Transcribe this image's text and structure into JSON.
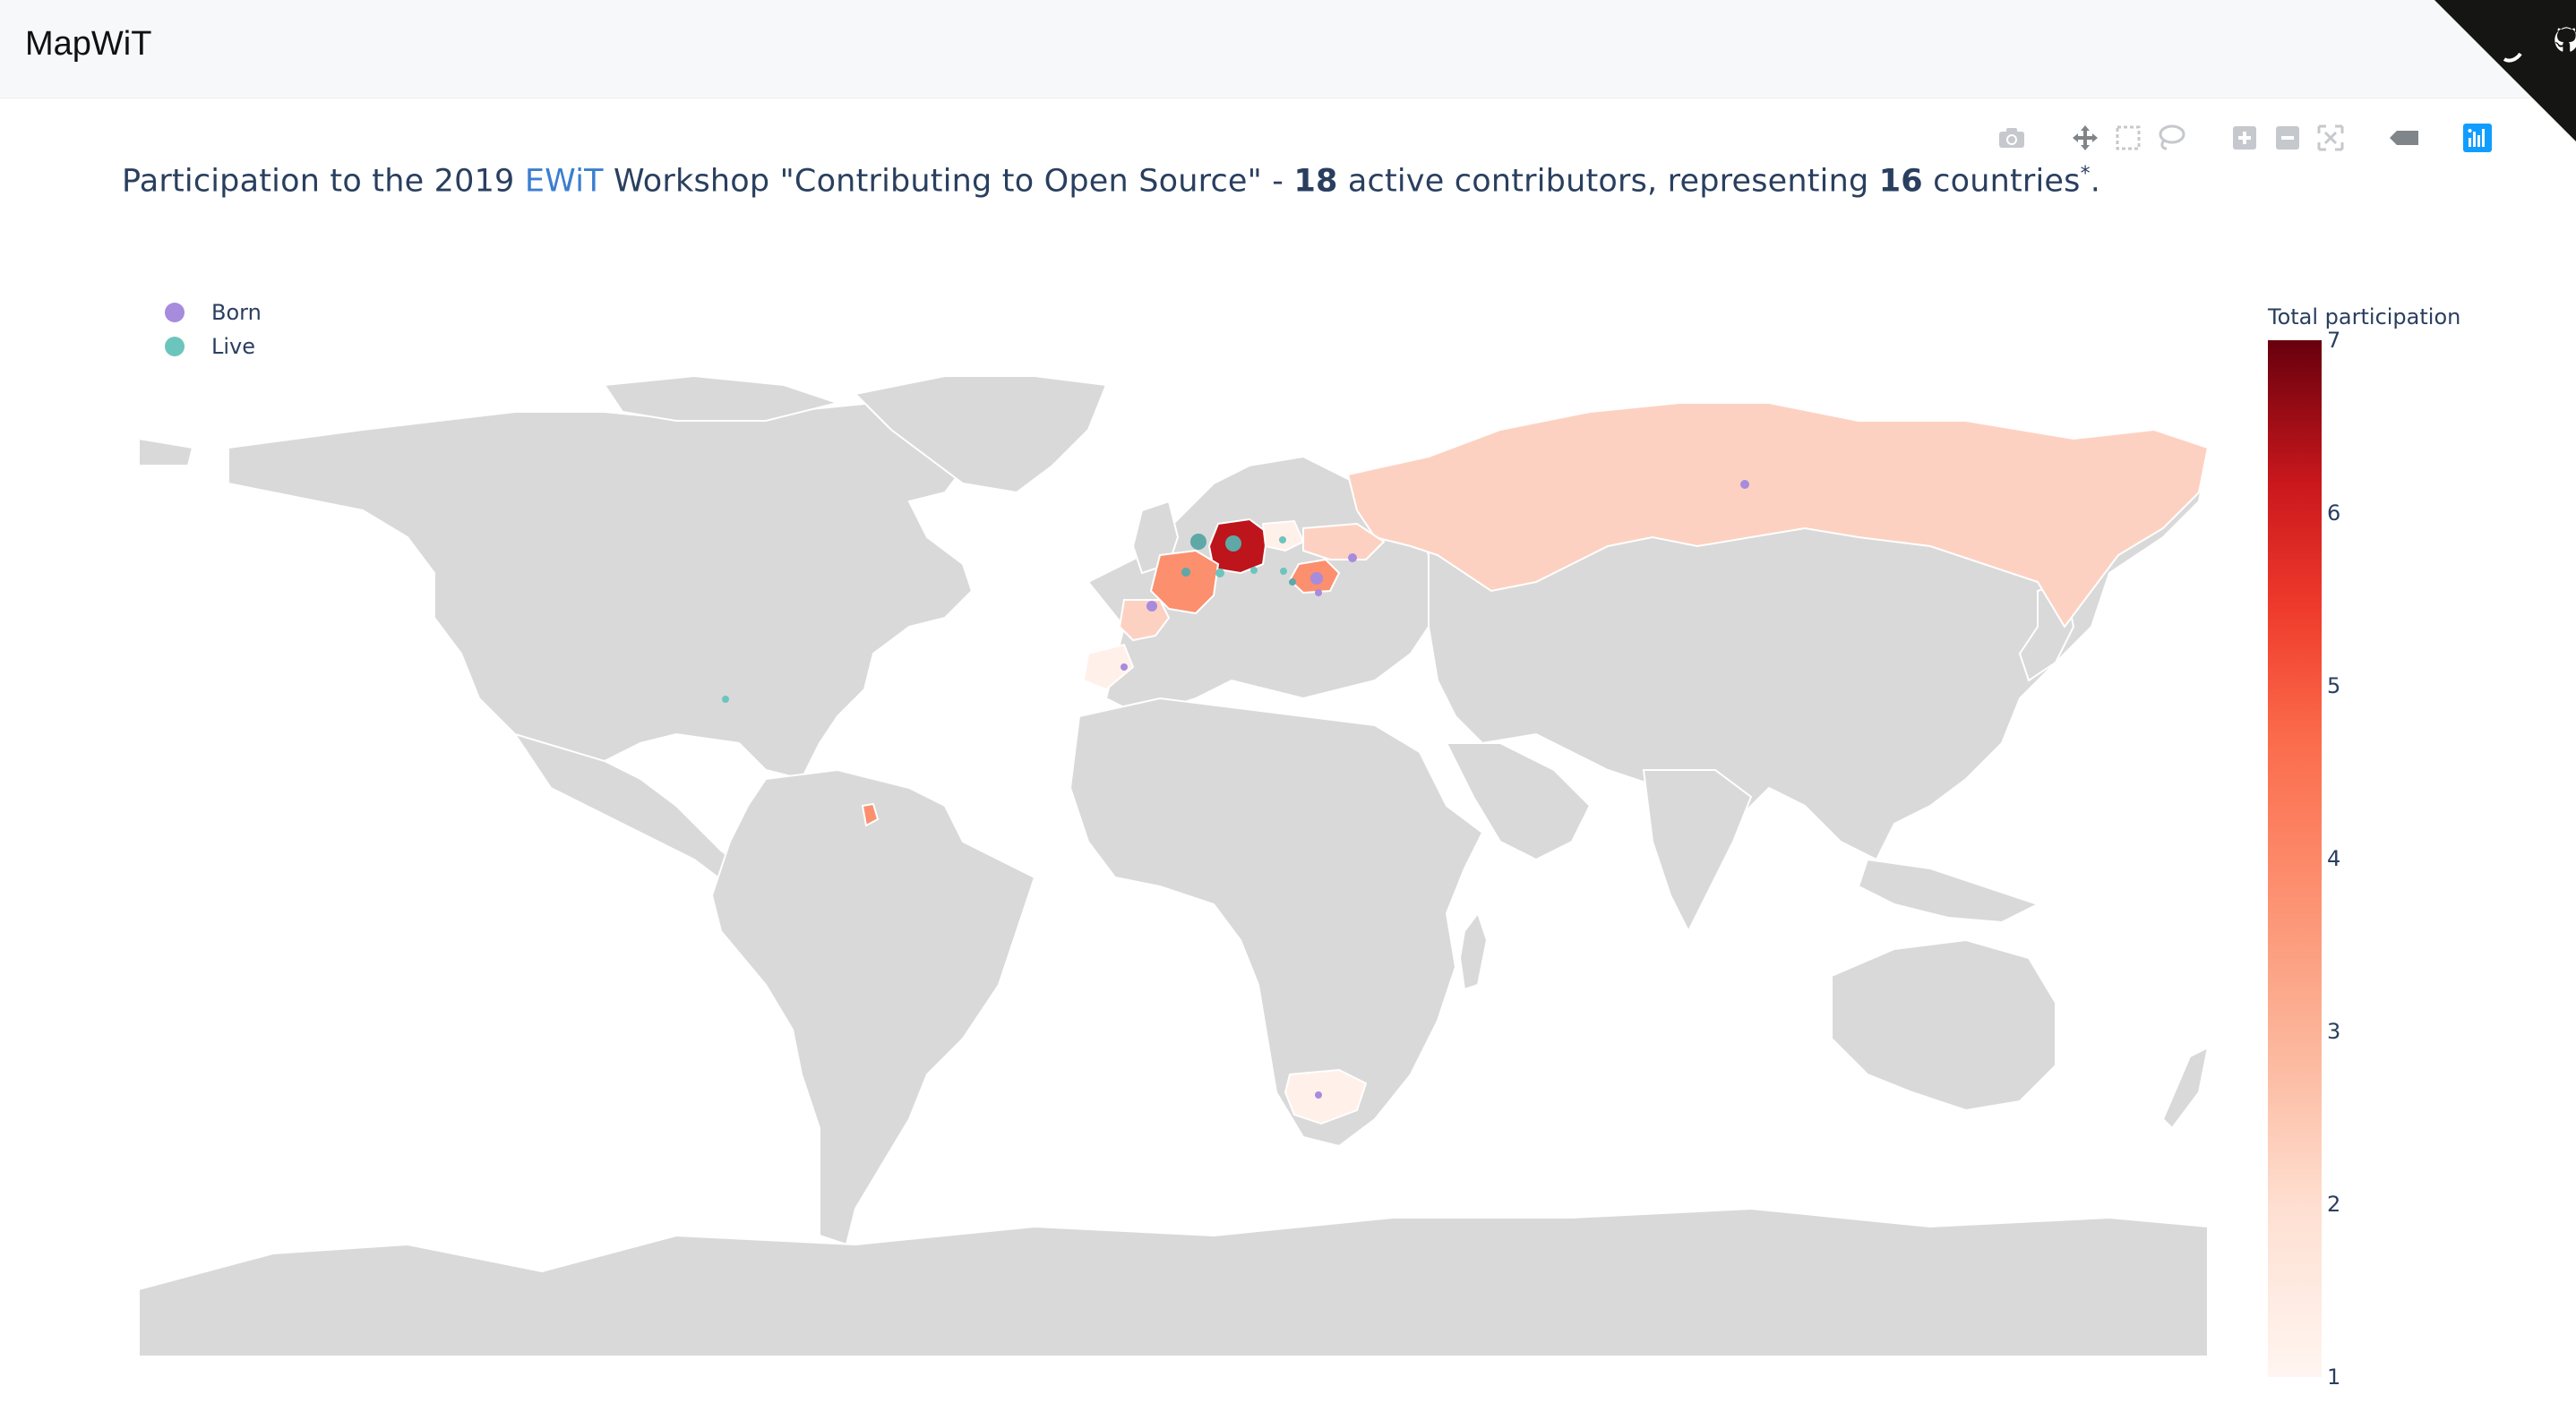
{
  "app": {
    "brand": "MapWiT"
  },
  "corner_icon": "github-octocat-icon",
  "modebar": [
    {
      "name": "camera-icon",
      "title": "Download plot as a png"
    },
    {
      "name": "pan-icon",
      "title": "Pan"
    },
    {
      "name": "box-select-icon",
      "title": "Box Select"
    },
    {
      "name": "lasso-select-icon",
      "title": "Lasso Select"
    },
    {
      "name": "zoom-in-icon",
      "title": "Zoom in"
    },
    {
      "name": "zoom-out-icon",
      "title": "Zoom out"
    },
    {
      "name": "reset-view-icon",
      "title": "Reset"
    },
    {
      "name": "hover-closest-icon",
      "title": "Show closest data on hover"
    },
    {
      "name": "plotly-logo-icon",
      "title": "Produced with Plotly"
    }
  ],
  "title": {
    "prefix": "Participation to the 2019 ",
    "link": "EWiT",
    "middle": " Workshop \"Contributing to Open Source\" - ",
    "contributors": "18",
    "contributors_suffix": " active contributors, representing ",
    "countries": "16",
    "countries_suffix": " countries",
    "footnote": "*",
    "end": "."
  },
  "legend": [
    {
      "label": "Born",
      "color": "#a78bdd"
    },
    {
      "label": "Live",
      "color": "#6cc5bd"
    }
  ],
  "colorbar": {
    "title": "Total participation",
    "ticks": [
      "7",
      "6",
      "5",
      "4",
      "3",
      "2",
      "1"
    ],
    "min": 1,
    "max": 7,
    "colorscale": "Reds"
  },
  "map": {
    "land_color": "#d9d9d9",
    "border_color": "#ffffff",
    "countries": [
      {
        "name": "Germany",
        "value": 7
      },
      {
        "name": "France",
        "value": 3
      },
      {
        "name": "Romania",
        "value": 3
      },
      {
        "name": "French Guiana",
        "value": 3
      },
      {
        "name": "Russia",
        "value": 2
      },
      {
        "name": "Spain",
        "value": 2
      },
      {
        "name": "Ukraine",
        "value": 2
      },
      {
        "name": "Poland",
        "value": 1
      },
      {
        "name": "South Africa",
        "value": 1
      },
      {
        "name": "Morocco",
        "value": 1
      }
    ]
  }
}
